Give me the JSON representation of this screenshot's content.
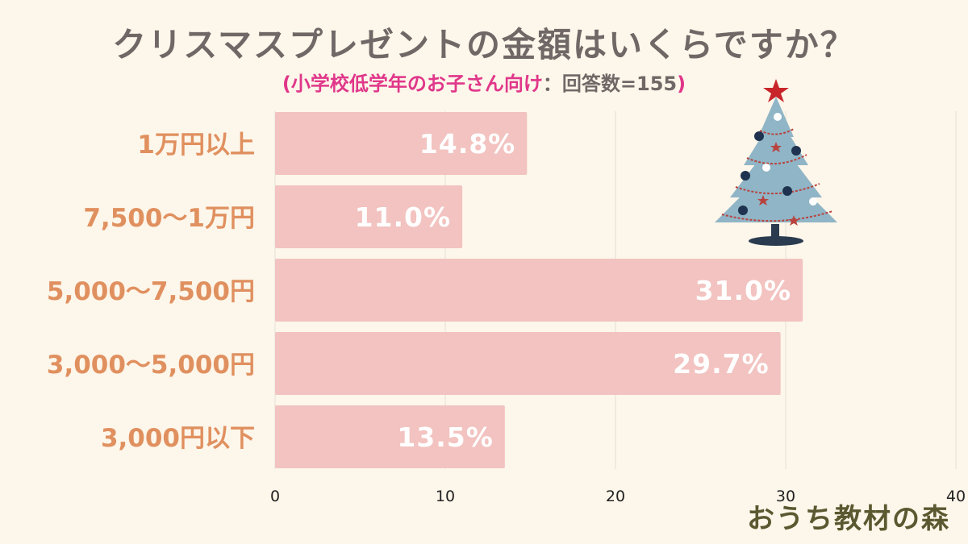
{
  "title": "クリスマスプレゼントの金額はいくらですか？",
  "subtitle": {
    "open": "(",
    "highlight": "小学校低学年のお子さん向け",
    "rest": "：回答数=155",
    "close": ")"
  },
  "watermark": "おうち教材の森",
  "colors": {
    "background": "#fdf6ea",
    "bar": "#f2c3c0",
    "bar_label": "#ffffff",
    "category_label": "#e0905f",
    "title": "#6f6866",
    "highlight": "#e0378a",
    "grid": "#ebe6dc",
    "tick": "#222222"
  },
  "chart_data": {
    "type": "bar",
    "orientation": "horizontal",
    "categories": [
      "1万円以上",
      "7,500〜1万円",
      "5,000〜7,500円",
      "3,000〜5,000円",
      "3,000円以下"
    ],
    "values": [
      14.8,
      11.0,
      31.0,
      29.7,
      13.5
    ],
    "value_labels": [
      "14.8%",
      "11.0%",
      "31.0%",
      "29.7%",
      "13.5%"
    ],
    "xlim": [
      0,
      40
    ],
    "xticks": [
      "0",
      "10",
      "20",
      "30",
      "40"
    ],
    "grid": true
  },
  "decoration": {
    "icon": "christmas-tree-icon"
  }
}
